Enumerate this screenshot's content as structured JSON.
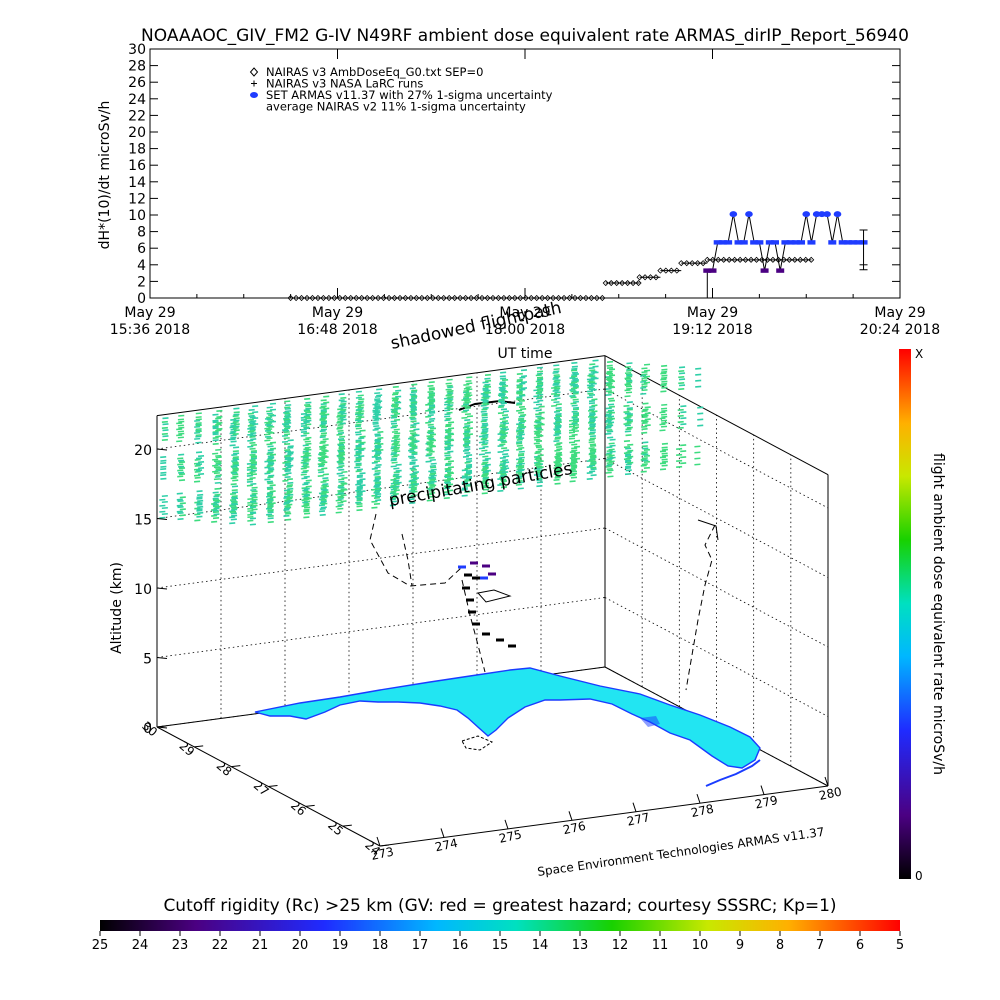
{
  "chart_data": [
    {
      "type": "scatter",
      "title": "NOAAAOC_GIV_FM2 G-IV    N49RF   ambient dose equivalent rate ARMAS_dirIP_Report_56940",
      "ylabel": "dH*(10)/dt microSv/h",
      "xlabel": "UT time",
      "ylim": [
        0,
        30
      ],
      "xlim_minutes": [
        936,
        1224
      ],
      "y_ticks": [
        "0",
        "2",
        "4",
        "6",
        "8",
        "10",
        "12",
        "14",
        "16",
        "18",
        "20",
        "22",
        "24",
        "26",
        "28",
        "30"
      ],
      "x_ticks": [
        {
          "line1": "May 29",
          "line2": "15:36 2018",
          "min": 936
        },
        {
          "line1": "May 29",
          "line2": "16:48 2018",
          "min": 1008
        },
        {
          "line1": "May 29",
          "line2": "18:00 2018",
          "min": 1080
        },
        {
          "line1": "May 29",
          "line2": "19:12 2018",
          "min": 1152
        },
        {
          "line1": "May 29",
          "line2": "20:24 2018",
          "min": 1224
        }
      ],
      "legend": [
        {
          "label": "NAIRAS v3 AmbDoseEq_G0.txt SEP=0",
          "marker": "diamond"
        },
        {
          "label": "NAIRAS v3 NASA LaRC runs",
          "marker": "plus"
        },
        {
          "label": "SET ARMAS v11.37 with 27% 1-sigma uncertainty",
          "marker": "blue-dot"
        },
        {
          "label": "average NAIRAS v2 11% 1-sigma uncertainty",
          "marker": "none"
        }
      ],
      "series": [
        {
          "name": "NAIRAS v3 AmbDoseEq_G0.txt SEP=0",
          "segments": [
            {
              "t0": 990,
              "t1": 1111,
              "value": 0.0
            },
            {
              "t0": 1111,
              "t1": 1124,
              "value": 1.8
            },
            {
              "t0": 1124,
              "t1": 1132,
              "value": 2.5
            },
            {
              "t0": 1132,
              "t1": 1140,
              "value": 3.3
            },
            {
              "t0": 1140,
              "t1": 1150,
              "value": 4.2
            },
            {
              "t0": 1150,
              "t1": 1190,
              "value": 4.6
            }
          ]
        },
        {
          "name": "SET ARMAS v11.37 with 27% 1-sigma uncertainty",
          "points": [
            [
              1150,
              3.3
            ],
            [
              1152,
              3.3
            ],
            [
              1154,
              6.7
            ],
            [
              1156,
              6.7
            ],
            [
              1158,
              6.7
            ],
            [
              1160,
              10.1
            ],
            [
              1162,
              6.7
            ],
            [
              1164,
              6.7
            ],
            [
              1166,
              10.1
            ],
            [
              1168,
              6.7
            ],
            [
              1170,
              6.7
            ],
            [
              1172,
              3.3
            ],
            [
              1174,
              6.7
            ],
            [
              1176,
              6.7
            ],
            [
              1178,
              3.3
            ],
            [
              1180,
              6.7
            ],
            [
              1182,
              6.7
            ],
            [
              1184,
              6.7
            ],
            [
              1186,
              6.7
            ],
            [
              1188,
              10.1
            ],
            [
              1190,
              6.7
            ],
            [
              1192,
              10.1
            ],
            [
              1194,
              10.1
            ],
            [
              1196,
              10.1
            ],
            [
              1198,
              6.7
            ],
            [
              1200,
              10.1
            ],
            [
              1202,
              6.7
            ],
            [
              1204,
              6.7
            ],
            [
              1206,
              6.7
            ],
            [
              1208,
              6.7
            ],
            [
              1210,
              6.7
            ]
          ]
        },
        {
          "name": "average NAIRAS v2 11% 1-sigma uncertainty",
          "errorbar": {
            "t": 1210,
            "value": 4.0,
            "low": 3.4,
            "high": 8.2
          }
        }
      ]
    },
    {
      "type": "scatter",
      "labels": {
        "shadowed_path": "shadowed flightpath",
        "precipitating": "precipitating particles",
        "altitude": "Altitude (km)",
        "credit": "Space Environment Technologies ARMAS v11.37"
      },
      "altitude_ticks": [
        "0",
        "5",
        "10",
        "15",
        "20"
      ],
      "lat_ticks": [
        "30",
        "29",
        "28",
        "27",
        "26",
        "25",
        "24"
      ],
      "lon_ticks": [
        "273",
        "274",
        "275",
        "276",
        "277",
        "278",
        "279",
        "280"
      ],
      "colorbar_right": {
        "label": "flight ambient dose equivalent rate microSv/h",
        "top": "X",
        "bottom": "0"
      },
      "colorbar_bottom": {
        "title": "Cutoff rigidity (Rc) >25 km (GV: red = greatest hazard; courtesy SSSRC; Kp=1)",
        "ticks": [
          "25",
          "24",
          "23",
          "22",
          "21",
          "20",
          "19",
          "18",
          "17",
          "16",
          "15",
          "14",
          "13",
          "12",
          "11",
          "10",
          "9",
          "8",
          "7",
          "6",
          "5"
        ]
      },
      "colors": {
        "land": "#22e5f2",
        "coast": "#1a3cff",
        "rigidity": "#3ddc7f",
        "track": "#000000"
      }
    }
  ]
}
